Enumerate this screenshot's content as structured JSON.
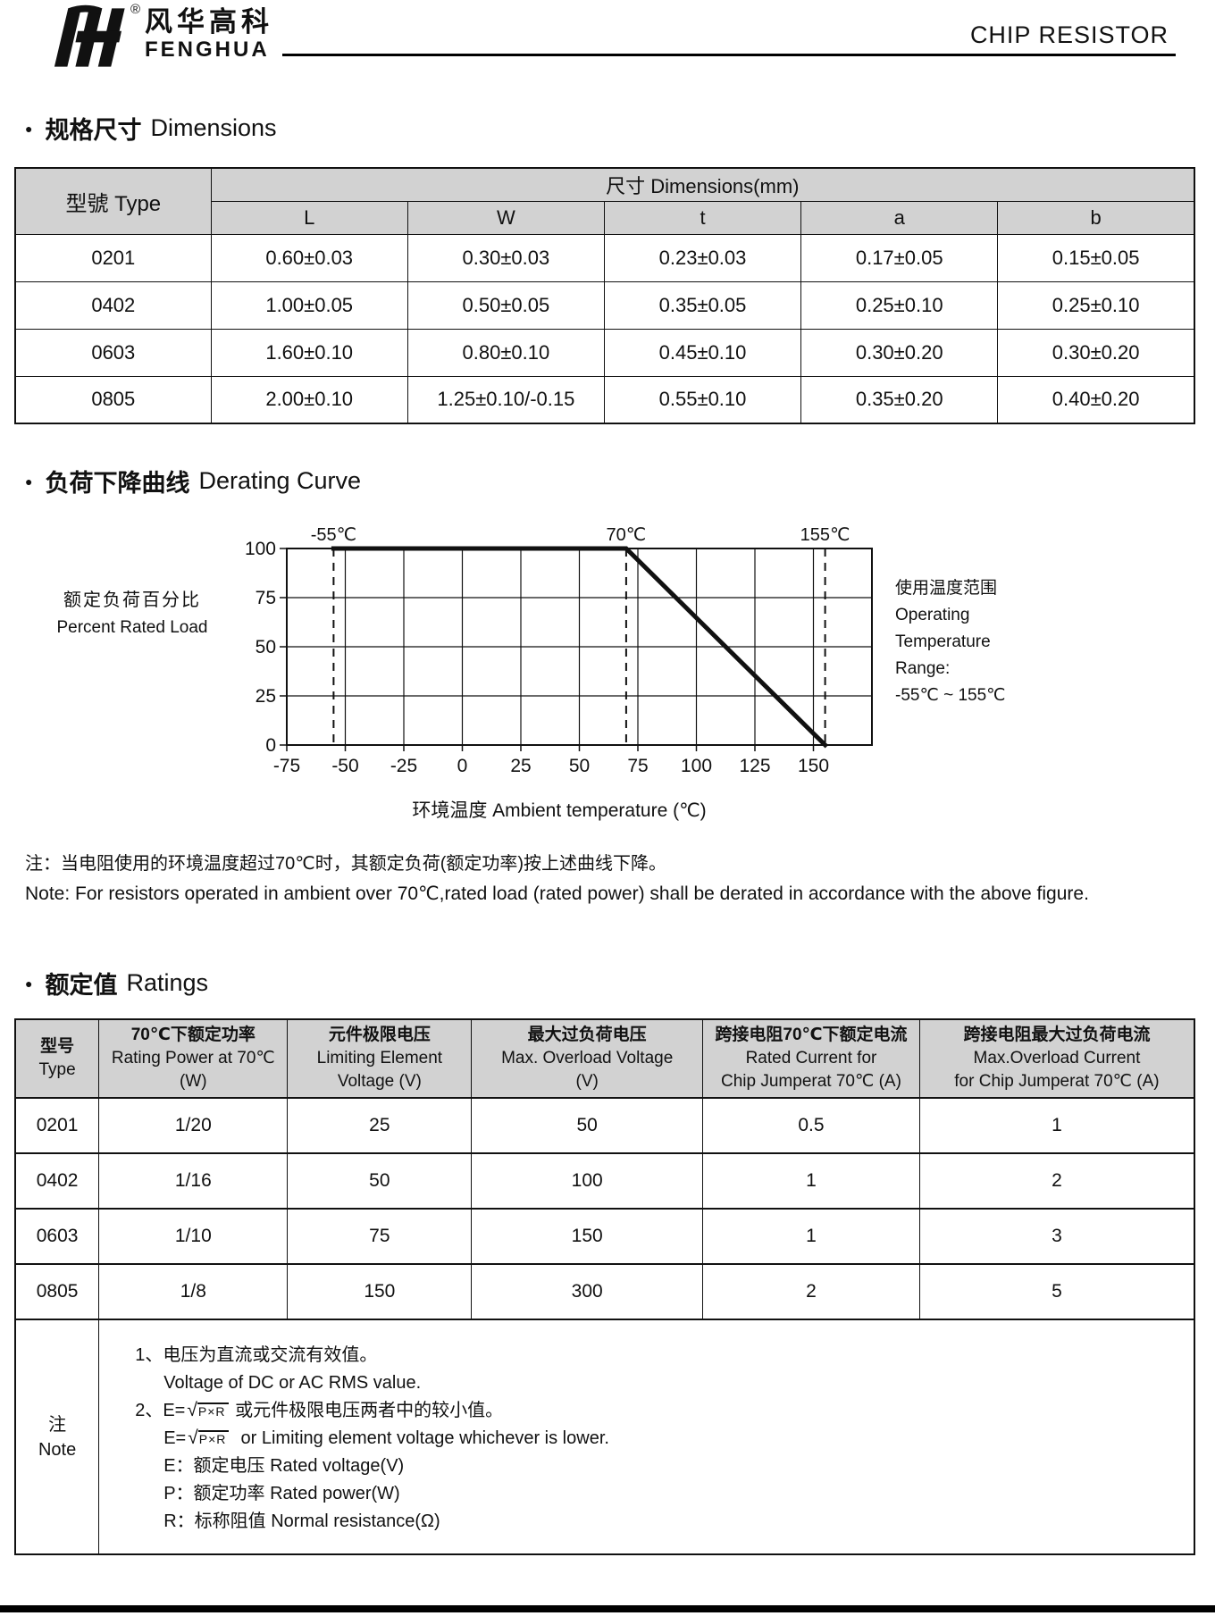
{
  "header": {
    "brand_cn": "风华高科",
    "brand_en": "FENGHUA",
    "registered": "®",
    "doc_title": "CHIP RESISTOR"
  },
  "dimensions": {
    "bullet": "●",
    "title_cn": "规格尺寸",
    "title_en": "Dimensions",
    "table": {
      "type_header": "型號 Type",
      "group_header": "尺寸 Dimensions(mm)",
      "columns": [
        "L",
        "W",
        "t",
        "a",
        "b"
      ],
      "rows": [
        {
          "type": "0201",
          "values": [
            "0.60±0.03",
            "0.30±0.03",
            "0.23±0.03",
            "0.17±0.05",
            "0.15±0.05"
          ]
        },
        {
          "type": "0402",
          "values": [
            "1.00±0.05",
            "0.50±0.05",
            "0.35±0.05",
            "0.25±0.10",
            "0.25±0.10"
          ]
        },
        {
          "type": "0603",
          "values": [
            "1.60±0.10",
            "0.80±0.10",
            "0.45±0.10",
            "0.30±0.20",
            "0.30±0.20"
          ]
        },
        {
          "type": "0805",
          "values": [
            "2.00±0.10",
            "1.25±0.10/-0.15",
            "0.55±0.10",
            "0.35±0.20",
            "0.40±0.20"
          ]
        }
      ]
    }
  },
  "derating": {
    "bullet": "●",
    "title_cn": "负荷下降曲线",
    "title_en": "Derating Curve",
    "ylabel_cn": "额定负荷百分比",
    "ylabel_en": "Percent Rated Load",
    "xlabel": "环境温度 Ambient temperature (℃)",
    "operating_range_lines": [
      "使用温度范围",
      "Operating",
      "Temperature",
      "Range:",
      "-55℃ ~ 155℃"
    ],
    "note_cn": "注：当电阻使用的环境温度超过70℃时，其额定负荷(额定功率)按上述曲线下降。",
    "note_en": "Note: For resistors operated in ambient over 70℃,rated  load (rated power) shall be derated in accordance with the above figure."
  },
  "chart_data": {
    "type": "line",
    "title": "负荷下降曲线 Derating Curve",
    "xlabel": "环境温度 Ambient temperature (℃)",
    "ylabel": "额定负荷百分比 Percent Rated Load",
    "xlim": [
      -75,
      175
    ],
    "ylim": [
      0,
      100
    ],
    "x_ticks": [
      -75,
      -50,
      -25,
      0,
      25,
      50,
      75,
      100,
      125,
      150
    ],
    "y_ticks": [
      0,
      25,
      50,
      75,
      100
    ],
    "grid": true,
    "legend_position": "none",
    "series": [
      {
        "name": "Percent Rated Load",
        "points": [
          [
            -55,
            100
          ],
          [
            70,
            100
          ],
          [
            155,
            0
          ]
        ]
      }
    ],
    "vertical_markers": [
      {
        "x": -55,
        "label": "-55℃"
      },
      {
        "x": 70,
        "label": "70℃"
      },
      {
        "x": 155,
        "label": "155℃"
      }
    ],
    "annotation": "使用温度范围 Operating Temperature Range: -55℃ ~ 155℃"
  },
  "ratings": {
    "bullet": "●",
    "title_cn": "额定值",
    "title_en": "Ratings",
    "table": {
      "headers": [
        [
          "型号",
          "Type"
        ],
        [
          "70℃下额定功率",
          "Rating Power  at 70℃",
          "(W)"
        ],
        [
          "元件极限电压",
          "Limiting Element",
          "Voltage (V)"
        ],
        [
          "最大过负荷电压",
          "Max. Overload Voltage",
          "(V)"
        ],
        [
          "跨接电阻70℃下额定电流",
          "Rated Current for",
          "Chip Jumperat 70℃ (A)"
        ],
        [
          "跨接电阻最大过负荷电流",
          "Max.Overload Current",
          "for Chip Jumperat 70℃ (A)"
        ]
      ],
      "rows": [
        {
          "type": "0201",
          "values": [
            "1/20",
            "25",
            "50",
            "0.5",
            "1"
          ]
        },
        {
          "type": "0402",
          "values": [
            "1/16",
            "50",
            "100",
            "1",
            "2"
          ]
        },
        {
          "type": "0603",
          "values": [
            "1/10",
            "75",
            "150",
            "1",
            "3"
          ]
        },
        {
          "type": "0805",
          "values": [
            "1/8",
            "150",
            "300",
            "2",
            "5"
          ]
        }
      ],
      "note_label_cn": "注",
      "note_label_en": "Note",
      "notes": [
        {
          "indent": 0,
          "parts": [
            {
              "text": "1、电压为直流或交流有效值。"
            }
          ]
        },
        {
          "indent": 1,
          "parts": [
            {
              "text": "Voltage of DC or AC RMS value."
            }
          ]
        },
        {
          "indent": 0,
          "parts": [
            {
              "text": "2、E="
            },
            {
              "sqrt": "P×R"
            },
            {
              "text": " 或元件极限电压两者中的较小值。"
            }
          ]
        },
        {
          "indent": 1,
          "parts": [
            {
              "text": "E="
            },
            {
              "sqrt": "P×R"
            },
            {
              "text": "  or Limiting element voltage whichever is lower."
            }
          ]
        },
        {
          "indent": 1,
          "parts": [
            {
              "text": "E：额定电压 Rated voltage(V)"
            }
          ]
        },
        {
          "indent": 1,
          "parts": [
            {
              "text": "P：额定功率 Rated power(W)"
            }
          ]
        },
        {
          "indent": 1,
          "parts": [
            {
              "text": "R：标称阻值 Normal resistance(Ω)"
            }
          ]
        }
      ]
    }
  }
}
